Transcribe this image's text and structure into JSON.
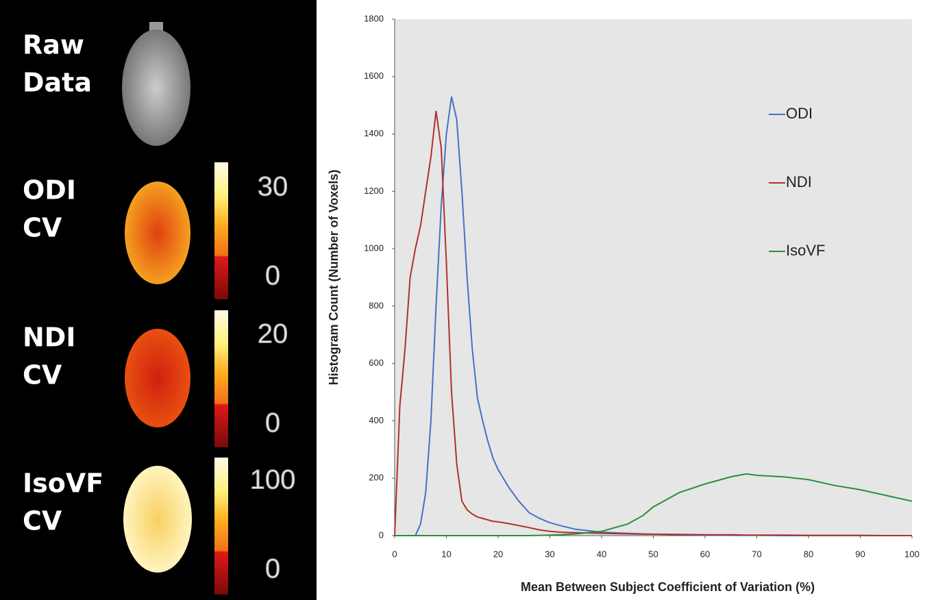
{
  "image_panel": {
    "rows": [
      {
        "label": [
          "Raw",
          "Data"
        ]
      },
      {
        "label": [
          "ODI",
          "CV"
        ],
        "colorbar": {
          "max": 30,
          "min": 0
        }
      },
      {
        "label": [
          "NDI",
          "CV"
        ],
        "colorbar": {
          "max": 20,
          "min": 0
        }
      },
      {
        "label": [
          "IsoVF",
          "CV"
        ],
        "colorbar": {
          "max": 100,
          "min": 0
        }
      }
    ]
  },
  "chart_data": {
    "type": "line",
    "xlabel": "Mean Between Subject Coefficient of Variation (%)",
    "ylabel": "Histogram Count (Number of Voxels)",
    "x": [
      0,
      1,
      2,
      3,
      4,
      5,
      6,
      7,
      8,
      9,
      10,
      11,
      12,
      13,
      14,
      15,
      16,
      17,
      18,
      19,
      20,
      22,
      24,
      26,
      28,
      30,
      32,
      35,
      40,
      45,
      48,
      50,
      55,
      60,
      65,
      68,
      70,
      75,
      80,
      85,
      90,
      95,
      100
    ],
    "series": [
      {
        "name": "ODI",
        "color": "#4472c4",
        "values": [
          0,
          0,
          0,
          0,
          0,
          40,
          150,
          400,
          800,
          1150,
          1400,
          1530,
          1450,
          1200,
          900,
          650,
          480,
          400,
          330,
          270,
          230,
          170,
          120,
          80,
          60,
          45,
          35,
          22,
          12,
          8,
          6,
          5,
          3,
          2,
          1,
          1,
          1,
          0,
          0,
          0,
          0,
          0,
          0
        ]
      },
      {
        "name": "NDI",
        "color": "#b0302a",
        "values": [
          0,
          450,
          650,
          900,
          1000,
          1080,
          1200,
          1320,
          1480,
          1350,
          950,
          500,
          250,
          120,
          90,
          75,
          65,
          60,
          55,
          50,
          48,
          42,
          35,
          28,
          20,
          15,
          12,
          10,
          8,
          6,
          5,
          5,
          4,
          3,
          3,
          2,
          2,
          2,
          1,
          1,
          1,
          0,
          0
        ]
      },
      {
        "name": "IsoVF",
        "color": "#2e8b3a",
        "values": [
          0,
          0,
          0,
          0,
          0,
          0,
          0,
          0,
          0,
          0,
          0,
          0,
          0,
          0,
          0,
          0,
          0,
          0,
          0,
          0,
          0,
          0,
          0,
          0,
          1,
          2,
          3,
          6,
          15,
          40,
          70,
          100,
          150,
          180,
          205,
          215,
          210,
          205,
          195,
          175,
          160,
          140,
          120
        ]
      }
    ],
    "xlim": [
      0,
      100
    ],
    "xticks": [
      0,
      10,
      20,
      30,
      40,
      50,
      60,
      70,
      80,
      90,
      100
    ],
    "ylim": [
      0,
      1800
    ],
    "yticks": [
      0,
      200,
      400,
      600,
      800,
      1000,
      1200,
      1400,
      1600,
      1800
    ],
    "legend": "right",
    "plot_background": "#e6e6e6"
  }
}
